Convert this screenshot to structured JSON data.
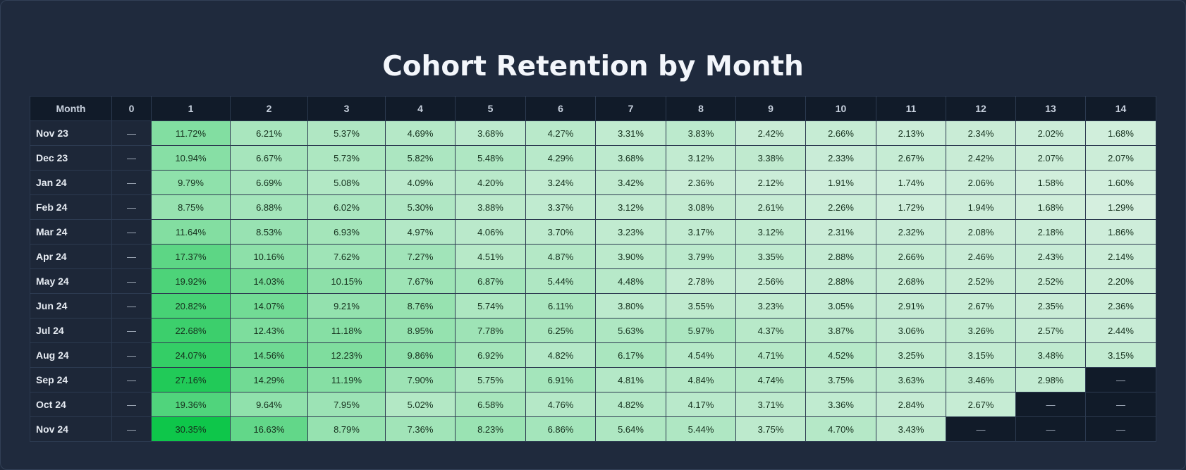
{
  "chart_data": {
    "type": "heatmap",
    "title": "Cohort Retention by Month",
    "row_header": "Month",
    "columns": [
      "0",
      "1",
      "2",
      "3",
      "4",
      "5",
      "6",
      "7",
      "8",
      "9",
      "10",
      "11",
      "12",
      "13",
      "14"
    ],
    "rows": [
      {
        "label": "Nov 23",
        "values": [
          "—",
          "11.72%",
          "6.21%",
          "5.37%",
          "4.69%",
          "3.68%",
          "4.27%",
          "3.31%",
          "3.83%",
          "2.42%",
          "2.66%",
          "2.13%",
          "2.34%",
          "2.02%",
          "1.68%"
        ]
      },
      {
        "label": "Dec 23",
        "values": [
          "—",
          "10.94%",
          "6.67%",
          "5.73%",
          "5.82%",
          "5.48%",
          "4.29%",
          "3.68%",
          "3.12%",
          "3.38%",
          "2.33%",
          "2.67%",
          "2.42%",
          "2.07%",
          "2.07%"
        ]
      },
      {
        "label": "Jan 24",
        "values": [
          "—",
          "9.79%",
          "6.69%",
          "5.08%",
          "4.09%",
          "4.20%",
          "3.24%",
          "3.42%",
          "2.36%",
          "2.12%",
          "1.91%",
          "1.74%",
          "2.06%",
          "1.58%",
          "1.60%"
        ]
      },
      {
        "label": "Feb 24",
        "values": [
          "—",
          "8.75%",
          "6.88%",
          "6.02%",
          "5.30%",
          "3.88%",
          "3.37%",
          "3.12%",
          "3.08%",
          "2.61%",
          "2.26%",
          "1.72%",
          "1.94%",
          "1.68%",
          "1.29%"
        ]
      },
      {
        "label": "Mar 24",
        "values": [
          "—",
          "11.64%",
          "8.53%",
          "6.93%",
          "4.97%",
          "4.06%",
          "3.70%",
          "3.23%",
          "3.17%",
          "3.12%",
          "2.31%",
          "2.32%",
          "2.08%",
          "2.18%",
          "1.86%"
        ]
      },
      {
        "label": "Apr 24",
        "values": [
          "—",
          "17.37%",
          "10.16%",
          "7.62%",
          "7.27%",
          "4.51%",
          "4.87%",
          "3.90%",
          "3.79%",
          "3.35%",
          "2.88%",
          "2.66%",
          "2.46%",
          "2.43%",
          "2.14%"
        ]
      },
      {
        "label": "May 24",
        "values": [
          "—",
          "19.92%",
          "14.03%",
          "10.15%",
          "7.67%",
          "6.87%",
          "5.44%",
          "4.48%",
          "2.78%",
          "2.56%",
          "2.88%",
          "2.68%",
          "2.52%",
          "2.52%",
          "2.20%"
        ]
      },
      {
        "label": "Jun 24",
        "values": [
          "—",
          "20.82%",
          "14.07%",
          "9.21%",
          "8.76%",
          "5.74%",
          "6.11%",
          "3.80%",
          "3.55%",
          "3.23%",
          "3.05%",
          "2.91%",
          "2.67%",
          "2.35%",
          "2.36%"
        ]
      },
      {
        "label": "Jul 24",
        "values": [
          "—",
          "22.68%",
          "12.43%",
          "11.18%",
          "8.95%",
          "7.78%",
          "6.25%",
          "5.63%",
          "5.97%",
          "4.37%",
          "3.87%",
          "3.06%",
          "3.26%",
          "2.57%",
          "2.44%"
        ]
      },
      {
        "label": "Aug 24",
        "values": [
          "—",
          "24.07%",
          "14.56%",
          "12.23%",
          "9.86%",
          "6.92%",
          "4.82%",
          "6.17%",
          "4.54%",
          "4.71%",
          "4.52%",
          "3.25%",
          "3.15%",
          "3.48%",
          "3.15%"
        ]
      },
      {
        "label": "Sep 24",
        "values": [
          "—",
          "27.16%",
          "14.29%",
          "11.19%",
          "7.90%",
          "5.75%",
          "6.91%",
          "4.81%",
          "4.84%",
          "4.74%",
          "3.75%",
          "3.63%",
          "3.46%",
          "2.98%",
          "—"
        ]
      },
      {
        "label": "Oct 24",
        "values": [
          "—",
          "19.36%",
          "9.64%",
          "7.95%",
          "5.02%",
          "6.58%",
          "4.76%",
          "4.82%",
          "4.17%",
          "3.71%",
          "3.36%",
          "2.84%",
          "2.67%",
          "—",
          "—"
        ]
      },
      {
        "label": "Nov 24",
        "values": [
          "—",
          "30.35%",
          "16.63%",
          "8.79%",
          "7.36%",
          "8.23%",
          "6.86%",
          "5.64%",
          "5.44%",
          "3.75%",
          "4.70%",
          "3.43%",
          "—",
          "—",
          "—"
        ]
      }
    ],
    "color_scale": {
      "low": "#d6efe0",
      "high": "#0ec64a"
    }
  }
}
